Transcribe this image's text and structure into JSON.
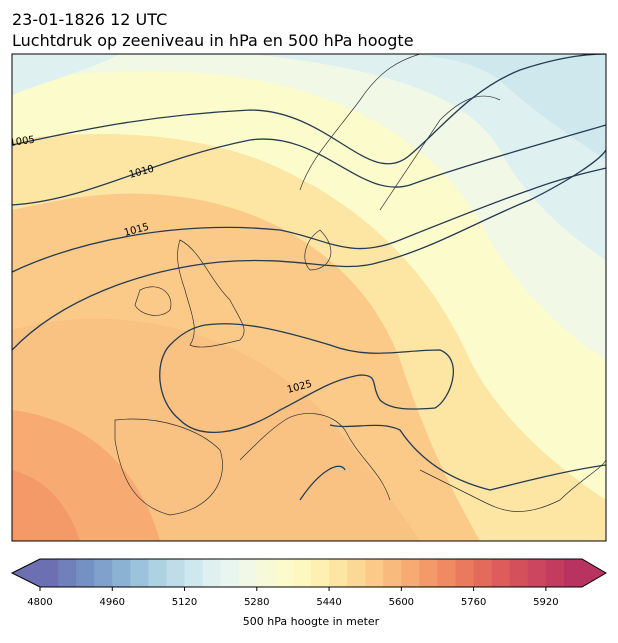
{
  "header": {
    "date": "23-01-1826 12 UTC",
    "title": "Luchtdruk op zeeniveau in hPa en 500 hPa hoogte"
  },
  "map": {
    "contour_labels": [
      "1005",
      "1010",
      "1015",
      "1025"
    ]
  },
  "colorbar": {
    "label": "500 hPa hoogte in meter",
    "lim": [
      4800,
      6000
    ],
    "ticks": [
      4800,
      4960,
      5120,
      5280,
      5440,
      5600,
      5760,
      5920
    ],
    "colors": [
      "#6c70b3",
      "#6f80bb",
      "#7590c3",
      "#7fa1cb",
      "#8cb2d3",
      "#9cc3db",
      "#add2e2",
      "#bedde8",
      "#cfe8ee",
      "#dff0f1",
      "#e9f5f0",
      "#f1f8e6",
      "#f7fad8",
      "#fcfbcc",
      "#fef7c0",
      "#feefb2",
      "#fde5a4",
      "#fcd897",
      "#fbca89",
      "#f9bb7d",
      "#f7aa72",
      "#f49a69",
      "#ef8a62",
      "#e97a5d",
      "#e36b5b",
      "#dc5d5b",
      "#d4515c",
      "#cb465e",
      "#c23c5f",
      "#b83360"
    ]
  }
}
